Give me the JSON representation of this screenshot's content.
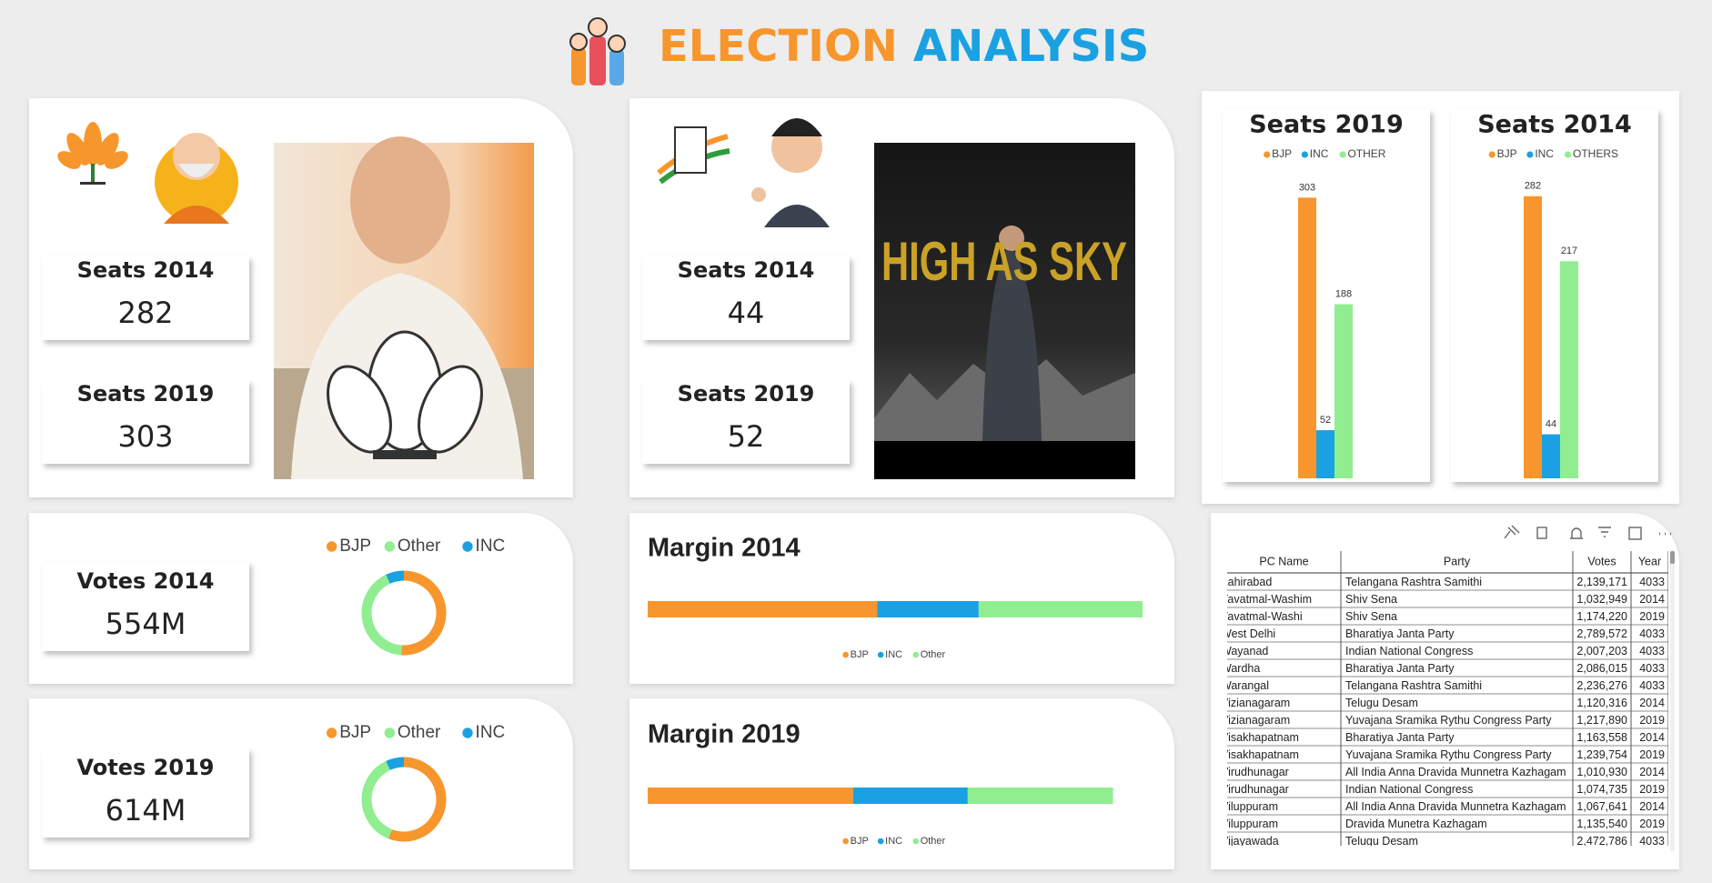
{
  "header": {
    "title_1": "ELECTION",
    "title_2": "ANALYSIS"
  },
  "bjp": {
    "cards": [
      {
        "label": "Seats 2014",
        "value": 282
      },
      {
        "label": "Seats 2019",
        "value": 303
      }
    ]
  },
  "inc": {
    "cards": [
      {
        "label": "Seats 2014",
        "value": 44
      },
      {
        "label": "Seats 2019",
        "value": 52
      }
    ],
    "image_text": "HIGH AS SKY"
  },
  "chart_data": [
    {
      "type": "bar",
      "title": "Seats 2019",
      "ylim": [
        0,
        324
      ],
      "series": [
        {
          "name": "BJP",
          "color": "#f7962d",
          "values": [
            303
          ]
        },
        {
          "name": "INC",
          "color": "#1ba1e2",
          "values": [
            52
          ]
        },
        {
          "name": "OTHER",
          "color": "#90ee90",
          "values": [
            188
          ]
        }
      ]
    },
    {
      "type": "bar",
      "title": "Seats 2014",
      "ylim": [
        0,
        300
      ],
      "series": [
        {
          "name": "BJP",
          "color": "#f7962d",
          "values": [
            282
          ]
        },
        {
          "name": "INC",
          "color": "#1ba1e2",
          "values": [
            44
          ]
        },
        {
          "name": "OTHERS",
          "color": "#90ee90",
          "values": [
            217
          ]
        }
      ]
    },
    {
      "type": "pie",
      "donut": true,
      "title": "Votes 2014",
      "total": "554M",
      "categories": [
        "BJP",
        "Other",
        "INC"
      ],
      "values": [
        51,
        42,
        7
      ],
      "colors": [
        "#f7962d",
        "#90ee90",
        "#1ba1e2"
      ]
    },
    {
      "type": "pie",
      "donut": true,
      "title": "Votes 2019",
      "total": "614M",
      "categories": [
        "BJP",
        "Other",
        "INC"
      ],
      "values": [
        56,
        37,
        7
      ],
      "colors": [
        "#f7962d",
        "#90ee90",
        "#1ba1e2"
      ]
    },
    {
      "type": "stacked_bar",
      "title": "Margin 2014",
      "xlim": [
        0,
        453
      ],
      "categories": [
        "BJP",
        "INC",
        "Other"
      ],
      "values": [
        210,
        93,
        150
      ],
      "colors": [
        "#f7962d",
        "#1ba1e2",
        "#90ee90"
      ]
    },
    {
      "type": "stacked_bar",
      "title": "Margin 2019",
      "xlim": [
        0,
        453
      ],
      "categories": [
        "BJP",
        "INC",
        "Other"
      ],
      "values": [
        188,
        105,
        133
      ],
      "colors": [
        "#f7962d",
        "#1ba1e2",
        "#90ee90"
      ]
    }
  ],
  "table": {
    "columns": [
      "PC Name",
      "Party",
      "Votes",
      "Year"
    ],
    "rows": [
      [
        "Zahirabad",
        "Telangana Rashtra Samithi",
        "2,139,171",
        "4033"
      ],
      [
        "Yavatmal-Washim",
        "Shiv Sena",
        "1,032,949",
        "2014"
      ],
      [
        "Yavatmal-Washi",
        "Shiv Sena",
        "1,174,220",
        "2019"
      ],
      [
        "West Delhi",
        "Bharatiya Janta Party",
        "2,789,572",
        "4033"
      ],
      [
        "Wayanad",
        "Indian National Congress",
        "2,007,203",
        "4033"
      ],
      [
        "Wardha",
        "Bharatiya Janta Party",
        "2,086,015",
        "4033"
      ],
      [
        "Warangal",
        "Telangana Rashtra Samithi",
        "2,236,276",
        "4033"
      ],
      [
        "Vizianagaram",
        "Telugu Desam",
        "1,120,316",
        "2014"
      ],
      [
        "Vizianagaram",
        "Yuvajana Sramika Rythu Congress Party",
        "1,217,890",
        "2019"
      ],
      [
        "Visakhapatnam",
        "Bharatiya Janta Party",
        "1,163,558",
        "2014"
      ],
      [
        "Visakhapatnam",
        "Yuvajana Sramika Rythu Congress Party",
        "1,239,754",
        "2019"
      ],
      [
        "Virudhunagar",
        "All India Anna Dravida Munnetra Kazhagam",
        "1,010,930",
        "2014"
      ],
      [
        "Virudhunagar",
        "Indian National Congress",
        "1,074,735",
        "2019"
      ],
      [
        "Viluppuram",
        "All India Anna Dravida Munnetra Kazhagam",
        "1,067,641",
        "2014"
      ],
      [
        "Viluppuram",
        "Dravida Munetra Kazhagam",
        "1,135,540",
        "2019"
      ],
      [
        "Vijayawada",
        "Telugu Desam",
        "2,472,786",
        "4033"
      ]
    ]
  }
}
